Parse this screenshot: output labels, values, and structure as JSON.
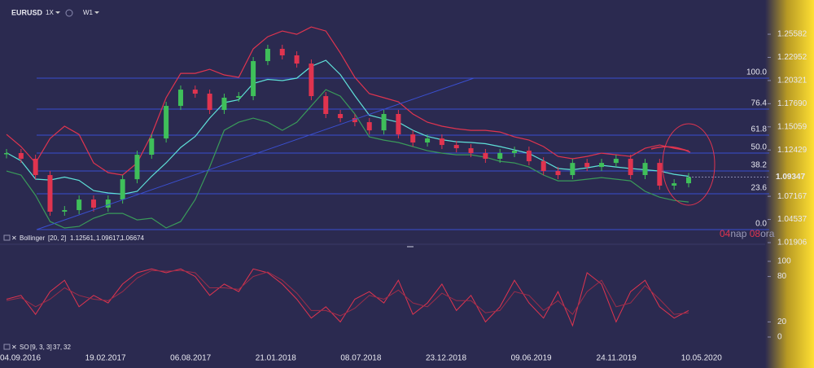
{
  "header": {
    "symbol": "EURUSD",
    "multiplier": "1X",
    "timeframe": "W1"
  },
  "countdown": {
    "days": "04",
    "days_unit": "nap",
    "hours": "08",
    "hours_unit": "ora"
  },
  "chart_data": [
    {
      "type": "candlestick",
      "legend": {
        "name": "Bollinger",
        "params": "[20, 2]",
        "values": [
          "1.12561,",
          "1.09617,",
          "1.06674"
        ]
      },
      "values": [
        1.1208,
        1.1143,
        1.0958,
        1.0542,
        1.056,
        1.068,
        1.0588,
        1.068,
        1.0911,
        1.1189,
        1.1374,
        1.1744,
        1.1929,
        1.1883,
        1.1698,
        1.1837,
        1.1855,
        1.2253,
        1.2392,
        1.2318,
        1.2225,
        1.1855,
        1.1652,
        1.1605,
        1.1559,
        1.1466,
        1.1652,
        1.142,
        1.1328,
        1.1374,
        1.13,
        1.1263,
        1.1208,
        1.1143,
        1.1208,
        1.1235,
        1.1115,
        1.1004,
        1.0958,
        1.1096,
        1.105,
        1.1096,
        1.1143,
        1.0958,
        1.1096,
        1.0838,
        1.0865,
        1.0935
      ],
      "up_color": "#3fbf5a",
      "down_color": "#e0344f",
      "bollinger_upper": {
        "color": "#e0344f",
        "values": [
          1.142,
          1.1282,
          1.1096,
          1.1374,
          1.1513,
          1.142,
          1.1096,
          1.0986,
          1.0958,
          1.1096,
          1.142,
          1.1837,
          1.2114,
          1.2114,
          1.216,
          1.2096,
          1.2068,
          1.2392,
          1.253,
          1.2595,
          1.2558,
          1.2641,
          1.2595,
          1.2345,
          1.2068,
          1.1883,
          1.1837,
          1.179,
          1.1652,
          1.1559,
          1.1513,
          1.1485,
          1.1466,
          1.1466,
          1.1448,
          1.1392,
          1.1355,
          1.1282,
          1.117,
          1.1143,
          1.117,
          1.1207,
          1.1189,
          1.117,
          1.1263,
          1.13,
          1.1263,
          1.1235
        ]
      },
      "bollinger_middle": {
        "color": "#5fe0d8",
        "values": [
          1.1212,
          1.112,
          1.0912,
          1.0902,
          1.0935,
          1.0898,
          1.0782,
          1.0755,
          1.0741,
          1.0773,
          1.0944,
          1.1097,
          1.1272,
          1.1397,
          1.1605,
          1.1781,
          1.1814,
          1.1999,
          1.2045,
          1.2031,
          1.2059,
          1.2193,
          1.2262,
          1.21,
          1.186,
          1.1638,
          1.1596,
          1.1559,
          1.1467,
          1.1397,
          1.136,
          1.1337,
          1.1328,
          1.1314,
          1.1282,
          1.1244,
          1.1203,
          1.112,
          1.1032,
          1.1018,
          1.1041,
          1.1069,
          1.105,
          1.1032,
          1.1018,
          1.1004,
          1.0967,
          1.0944
        ]
      },
      "bollinger_lower": {
        "color": "#3a9a5a",
        "values": [
          1.1004,
          1.0958,
          1.0727,
          1.043,
          1.0357,
          1.0375,
          1.0468,
          1.0523,
          1.0523,
          1.0449,
          1.0468,
          1.0357,
          1.043,
          1.068,
          1.105,
          1.1466,
          1.1559,
          1.1605,
          1.1559,
          1.1466,
          1.1559,
          1.1744,
          1.1929,
          1.1855,
          1.1652,
          1.1392,
          1.1355,
          1.1328,
          1.1282,
          1.1235,
          1.1207,
          1.1189,
          1.1189,
          1.1161,
          1.1115,
          1.1096,
          1.105,
          1.0958,
          1.0893,
          1.0893,
          1.0911,
          1.093,
          1.0911,
          1.0893,
          1.0773,
          1.0707,
          1.067,
          1.0652
        ]
      },
      "fib_levels": [
        {
          "price": 1.2059,
          "label": "100.0"
        },
        {
          "price": 1.1707,
          "label": "76.4"
        },
        {
          "price": 1.1411,
          "label": "61.8"
        },
        {
          "price": 1.1208,
          "label": "50.0"
        },
        {
          "price": 1.1004,
          "label": "38.2"
        },
        {
          "price": 1.0745,
          "label": "23.6"
        },
        {
          "price": 1.0338,
          "label": "0.0"
        }
      ],
      "fib_color": "#3a4fd0",
      "last_price": 1.09347,
      "ylim": [
        1.0172,
        1.2947
      ],
      "yticks": [
        1.25582,
        1.22952,
        1.20321,
        {
          "value": 1.1769,
          "label": "1.17690"
        },
        1.15059,
        1.12429,
        1.07167,
        1.04537,
        1.01906
      ]
    },
    {
      "type": "line",
      "legend": {
        "name": "SO",
        "params": "[9, 3, 3]",
        "values": [
          "37,",
          "32"
        ]
      },
      "series": [
        {
          "color": "#e0344f",
          "values": [
            50,
            55,
            30,
            60,
            75,
            40,
            55,
            45,
            70,
            85,
            90,
            85,
            90,
            80,
            55,
            70,
            60,
            90,
            85,
            70,
            50,
            25,
            40,
            20,
            50,
            60,
            45,
            75,
            30,
            45,
            70,
            35,
            55,
            20,
            40,
            75,
            45,
            25,
            60,
            15,
            85,
            70,
            20,
            60,
            75,
            40,
            25,
            35
          ]
        },
        {
          "color": "#9b2d4a",
          "values": [
            48,
            52,
            40,
            50,
            65,
            55,
            50,
            48,
            60,
            78,
            88,
            87,
            88,
            85,
            65,
            65,
            63,
            80,
            86,
            75,
            58,
            35,
            35,
            28,
            38,
            55,
            50,
            62,
            45,
            40,
            58,
            48,
            48,
            32,
            35,
            60,
            55,
            35,
            48,
            30,
            60,
            75,
            40,
            45,
            68,
            50,
            30,
            32
          ]
        }
      ],
      "ylim": [
        -19.4,
        122.6
      ],
      "yticks": [
        100,
        80,
        20,
        0
      ],
      "x_labels": [
        "04.09.2016",
        "19.02.2017",
        "06.08.2017",
        "21.01.2018",
        "08.07.2018",
        "23.12.2018",
        "09.06.2019",
        "24.11.2019",
        "10.05.2020"
      ]
    }
  ]
}
